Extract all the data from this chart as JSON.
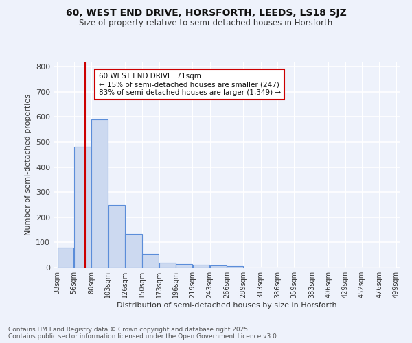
{
  "title_line1": "60, WEST END DRIVE, HORSFORTH, LEEDS, LS18 5JZ",
  "title_line2": "Size of property relative to semi-detached houses in Horsforth",
  "xlabel": "Distribution of semi-detached houses by size in Horsforth",
  "ylabel": "Number of semi-detached properties",
  "footer_line1": "Contains HM Land Registry data © Crown copyright and database right 2025.",
  "footer_line2": "Contains public sector information licensed under the Open Government Licence v3.0.",
  "annotation_title": "60 WEST END DRIVE: 71sqm",
  "annotation_line1": "← 15% of semi-detached houses are smaller (247)",
  "annotation_line2": "83% of semi-detached houses are larger (1,349) →",
  "property_size": 71,
  "bar_edges": [
    33,
    56,
    80,
    103,
    126,
    150,
    173,
    196,
    219,
    243,
    266,
    289,
    313,
    336,
    359,
    383,
    406,
    429,
    452,
    476,
    499
  ],
  "bar_heights": [
    80,
    480,
    590,
    250,
    135,
    55,
    20,
    15,
    10,
    8,
    5,
    0,
    0,
    0,
    0,
    0,
    0,
    0,
    0,
    0
  ],
  "bar_color": "#ccd9f0",
  "bar_edge_color": "#5b8dd9",
  "red_line_color": "#cc0000",
  "background_color": "#eef2fb",
  "annotation_box_edge": "#cc0000",
  "ylim": [
    0,
    820
  ],
  "yticks": [
    0,
    100,
    200,
    300,
    400,
    500,
    600,
    700,
    800
  ]
}
